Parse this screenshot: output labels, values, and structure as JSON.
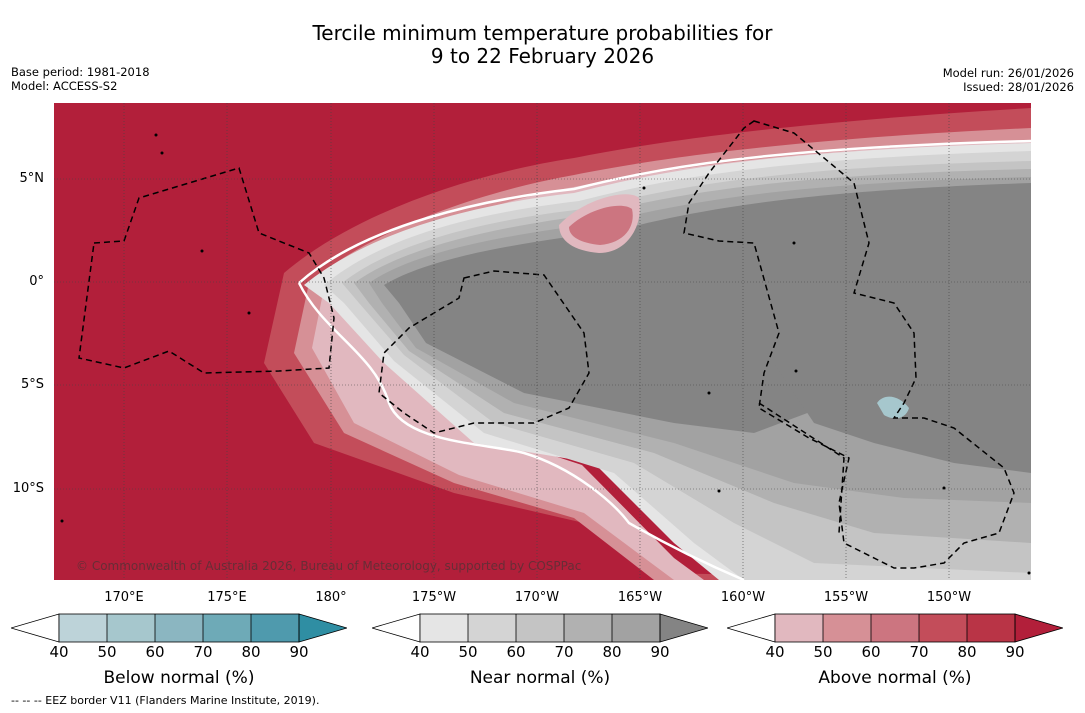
{
  "title": {
    "line1": "Tercile minimum temperature probabilities for",
    "line2": "9 to 22 February 2026"
  },
  "meta": {
    "base_period": "Base period: 1981-2018",
    "model": "Model: ACCESS-S2",
    "model_run": "Model run: 26/01/2026",
    "issued": "Issued: 28/01/2026"
  },
  "map": {
    "lat_labels": [
      "5°N",
      "0°",
      "5°S",
      "10°S"
    ],
    "lon_labels": [
      "170°E",
      "175°E",
      "180°",
      "175°W",
      "170°W",
      "165°W",
      "160°W",
      "155°W",
      "150°W"
    ],
    "copyright": "© Commonwealth of Australia 2026, Bureau of Meteorology, supported by COSPPac",
    "colors": {
      "below": [
        "#bdd3d9",
        "#a6c7cd",
        "#8bb6c1",
        "#6eaab7",
        "#4f9aad",
        "#2f8ea3"
      ],
      "near": [
        "#e5e5e5",
        "#d4d4d4",
        "#c4c4c4",
        "#b1b1b1",
        "#a2a2a2",
        "#848484"
      ],
      "above": [
        "#e1b8bf",
        "#d69096",
        "#cc7580",
        "#c34d5a",
        "#b93446",
        "#b21f3a"
      ]
    }
  },
  "legend": {
    "ticks": [
      "40",
      "50",
      "60",
      "70",
      "80",
      "90"
    ],
    "below_label": "Below normal (%)",
    "near_label": "Near normal (%)",
    "above_label": "Above normal (%)"
  },
  "footnote": "--  --  -- EEZ border V11 (Flanders Marine Institute, 2019)."
}
